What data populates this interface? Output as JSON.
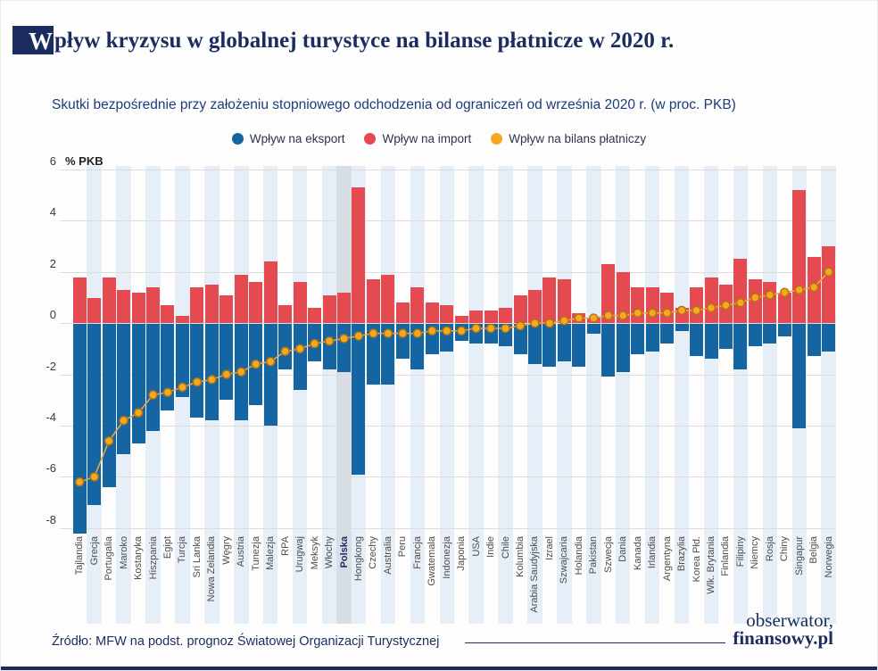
{
  "header": {
    "title_first_letter": "W",
    "title_rest": "pływ kryzysu w globalnej turystyce na bilanse płatnicze w 2020 r.",
    "subtitle": "Skutki bezpośrednie przy założeniu stopniowego odchodzenia od ograniczeń od września 2020 r. (w proc. PKB)"
  },
  "colors": {
    "navy": "#1b2c5f",
    "export_bar": "#1565a3",
    "import_bar": "#e64a51",
    "balance_dot": "#f7a823",
    "balance_dot_border": "#b07510",
    "balance_line": "#f3a73a",
    "stripe_blue": "#e6eff7",
    "stripe_highlight": "#d9dde4",
    "gridline": "#dcdcdc"
  },
  "y_axis": {
    "unit_label": "% PKB",
    "ticks": [
      6,
      4,
      2,
      0,
      -2,
      -4,
      -6,
      -8
    ]
  },
  "chart_data": {
    "type": "bar",
    "subtype": "diverging bars with balance dot-line overlay",
    "title": "Wpływ kryzysu w globalnej turystyce na bilanse płatnicze w 2020 r.",
    "xlabel": "",
    "ylabel": "% PKB",
    "ylim": [
      -8,
      6
    ],
    "grid": "horizontal",
    "legend_position": "top-center",
    "column_banding": "alternate columns shaded light blue",
    "highlight_category": "Polska",
    "categories": [
      "Tajlandia",
      "Grecja",
      "Portugalia",
      "Maroko",
      "Kostaryka",
      "Hiszpania",
      "Egipt",
      "Turcja",
      "Sri Lanka",
      "Nowa Zelandia",
      "Węgry",
      "Austria",
      "Tunezja",
      "Malezja",
      "RPA",
      "Urugwaj",
      "Meksyk",
      "Włochy",
      "Polska",
      "Hongkong",
      "Czechy",
      "Australia",
      "Peru",
      "Francja",
      "Gwatemala",
      "Indonezja",
      "Japonia",
      "USA",
      "Indie",
      "Chile",
      "Kolumbia",
      "Arabia Saudyjska",
      "Izrael",
      "Szwajcaria",
      "Holandia",
      "Pakistan",
      "Szwecja",
      "Dania",
      "Kanada",
      "Irlandia",
      "Argentyna",
      "Brazylia",
      "Korea Płd.",
      "Wlk. Brytania",
      "Finlandia",
      "Filipiny",
      "Niemcy",
      "Rosja",
      "Chiny",
      "Singapur",
      "Belgia",
      "Norwegia"
    ],
    "series": [
      {
        "name": "Wpływ na eksport",
        "type": "bar",
        "color": "#1565a3",
        "values": [
          -8.2,
          -7.1,
          -6.4,
          -5.1,
          -4.7,
          -4.2,
          -3.4,
          -2.9,
          -3.7,
          -3.8,
          -3.0,
          -3.8,
          -3.2,
          -4.0,
          -1.8,
          -2.6,
          -1.5,
          -1.8,
          -1.9,
          -5.9,
          -2.4,
          -2.4,
          -1.4,
          -1.8,
          -1.2,
          -1.1,
          -0.7,
          -0.8,
          -0.8,
          -0.9,
          -1.2,
          -1.6,
          -1.7,
          -1.5,
          -1.7,
          -0.4,
          -2.1,
          -1.9,
          -1.2,
          -1.1,
          -0.8,
          -0.3,
          -1.3,
          -1.4,
          -1.0,
          -1.8,
          -0.9,
          -0.8,
          -0.5,
          -4.1,
          -1.3,
          -1.1
        ]
      },
      {
        "name": "Wpływ na import",
        "type": "bar",
        "color": "#e64a51",
        "values": [
          1.8,
          1.0,
          1.8,
          1.3,
          1.2,
          1.4,
          0.7,
          0.3,
          1.4,
          1.5,
          1.1,
          1.9,
          1.6,
          2.4,
          0.7,
          1.6,
          0.6,
          1.1,
          1.2,
          5.3,
          1.7,
          1.9,
          0.8,
          1.4,
          0.8,
          0.7,
          0.3,
          0.5,
          0.5,
          0.6,
          1.1,
          1.3,
          1.8,
          1.7,
          0.4,
          0.2,
          2.3,
          2.0,
          1.4,
          1.4,
          1.2,
          0.6,
          1.4,
          1.8,
          1.5,
          2.5,
          1.7,
          1.6,
          1.2,
          5.2,
          2.6,
          3.0
        ]
      },
      {
        "name": "Wpływ na bilans płatniczy",
        "type": "line",
        "marker": "dot",
        "color": "#f7a823",
        "values": [
          -6.2,
          -6.0,
          -4.6,
          -3.8,
          -3.5,
          -2.8,
          -2.7,
          -2.5,
          -2.3,
          -2.2,
          -2.0,
          -1.9,
          -1.6,
          -1.5,
          -1.1,
          -1.0,
          -0.8,
          -0.7,
          -0.6,
          -0.5,
          -0.4,
          -0.4,
          -0.4,
          -0.4,
          -0.3,
          -0.3,
          -0.3,
          -0.2,
          -0.2,
          -0.2,
          -0.1,
          0.0,
          0.0,
          0.1,
          0.2,
          0.2,
          0.3,
          0.3,
          0.4,
          0.4,
          0.4,
          0.5,
          0.5,
          0.6,
          0.7,
          0.8,
          1.0,
          1.1,
          1.2,
          1.3,
          1.4,
          2.0
        ]
      }
    ]
  },
  "footer": {
    "source": "Źródło: MFW na podst. prognoz Światowej Organizacji Turystycznej",
    "logo_line1": "obserwator,",
    "logo_line2": "finansowy.pl"
  }
}
